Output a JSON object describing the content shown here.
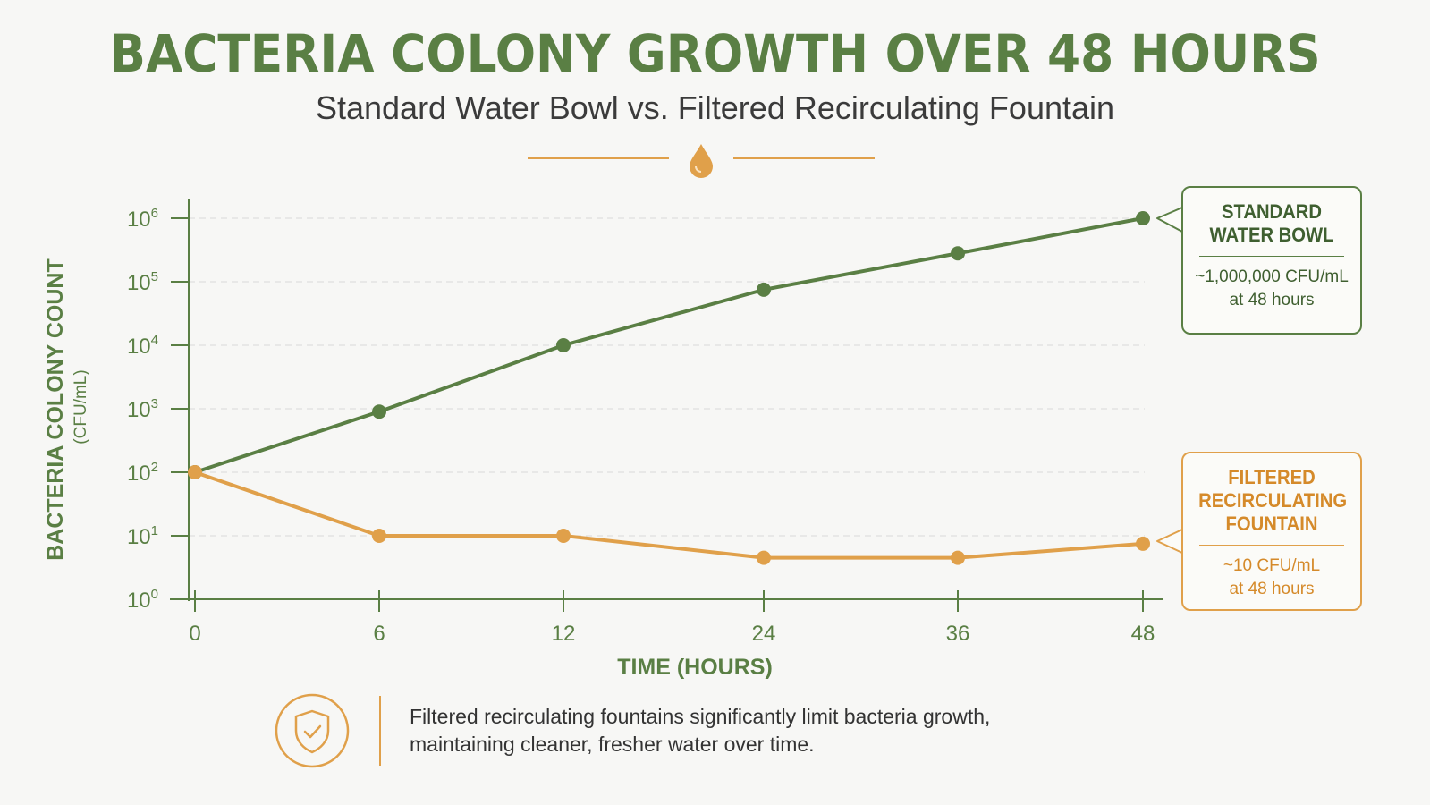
{
  "colors": {
    "green": "#5a7f44",
    "orange": "#e0a04a",
    "grid": "#d9d9d9"
  },
  "icons": {
    "divider": "water-drop-icon",
    "footer": "shield-check-icon"
  },
  "header": {
    "title": "BACTERIA COLONY GROWTH OVER 48 HOURS",
    "subtitle": "Standard Water Bowl vs. Filtered Recirculating Fountain"
  },
  "chart_data": {
    "type": "line",
    "title": "BACTERIA COLONY GROWTH OVER 48 HOURS",
    "subtitle": "Standard Water Bowl vs. Filtered Recirculating Fountain",
    "xlabel": "TIME (HOURS)",
    "ylabel": "BACTERIA COLONY COUNT",
    "ylabel_unit": "(CFU/mL)",
    "y_scale": "log",
    "ylim": [
      1,
      1000000
    ],
    "y_ticks": [
      {
        "base": "10",
        "exp": "0"
      },
      {
        "base": "10",
        "exp": "1"
      },
      {
        "base": "10",
        "exp": "2"
      },
      {
        "base": "10",
        "exp": "3"
      },
      {
        "base": "10",
        "exp": "4"
      },
      {
        "base": "10",
        "exp": "5"
      },
      {
        "base": "10",
        "exp": "6"
      }
    ],
    "x_ticks": [
      "0",
      "6",
      "12",
      "24",
      "36",
      "48"
    ],
    "x": [
      0,
      6,
      12,
      24,
      36,
      48
    ],
    "grid": true,
    "legend": "callouts-right",
    "series": [
      {
        "name": "STANDARD WATER BOWL",
        "color": "#5a7f44",
        "values": [
          100,
          900,
          10000,
          75000,
          280000,
          1000000
        ]
      },
      {
        "name": "FILTERED RECIRCULATING FOUNTAIN",
        "color": "#e0a04a",
        "values": [
          100,
          10,
          10,
          4.5,
          4.5,
          7.5
        ]
      }
    ]
  },
  "callouts": {
    "standard": {
      "title_line1": "STANDARD",
      "title_line2": "WATER BOWL",
      "text_line1": "~1,000,000 CFU/mL",
      "text_line2": "at 48 hours"
    },
    "fountain": {
      "title_line1": "FILTERED",
      "title_line2": "RECIRCULATING",
      "title_line3": "FOUNTAIN",
      "text_line1": "~10 CFU/mL",
      "text_line2": "at 48 hours"
    }
  },
  "footer": {
    "line1": "Filtered recirculating fountains significantly limit bacteria growth,",
    "line2": "maintaining cleaner, fresher water over time."
  }
}
